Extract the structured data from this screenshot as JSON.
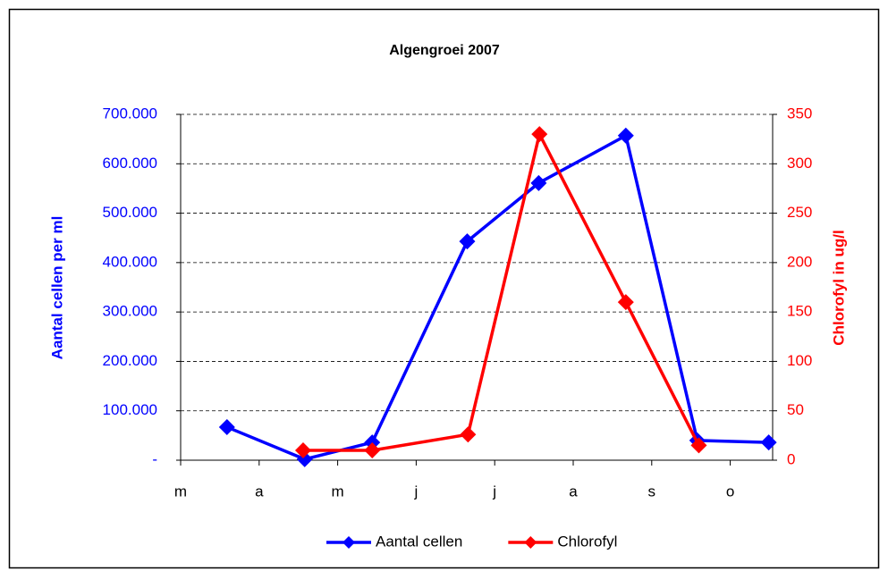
{
  "chart_data": {
    "type": "line",
    "title": "Algengroei 2007",
    "y_label": "Aantal cellen per ml",
    "y2_label": "Chlorofyl in ug/l",
    "xlim": [
      3,
      10.54
    ],
    "xticks": [
      {
        "value": 3,
        "label": "m"
      },
      {
        "value": 4,
        "label": "a"
      },
      {
        "value": 5,
        "label": "m"
      },
      {
        "value": 6,
        "label": "j"
      },
      {
        "value": 7,
        "label": "j"
      },
      {
        "value": 8,
        "label": "a"
      },
      {
        "value": 9,
        "label": "s"
      },
      {
        "value": 10,
        "label": "o"
      }
    ],
    "ylim": [
      0,
      700000
    ],
    "yticks": [
      {
        "value": 0,
        "label": "-"
      },
      {
        "value": 100000,
        "label": "100.000"
      },
      {
        "value": 200000,
        "label": "200.000"
      },
      {
        "value": 300000,
        "label": "300.000"
      },
      {
        "value": 400000,
        "label": "400.000"
      },
      {
        "value": 500000,
        "label": "500.000"
      },
      {
        "value": 600000,
        "label": "600.000"
      },
      {
        "value": 700000,
        "label": "700.000"
      }
    ],
    "y2lim": [
      0,
      350
    ],
    "y2ticks": [
      0,
      50,
      100,
      150,
      200,
      250,
      300,
      350
    ],
    "grid": true,
    "legend": "bottom",
    "series": [
      {
        "name": "Aantal cellen",
        "color": "#0000ff",
        "x": [
          3.59,
          4.58,
          5.44,
          6.65,
          7.56,
          8.67,
          9.58,
          10.49
        ],
        "values": [
          67000,
          2000,
          36000,
          443000,
          561000,
          657000,
          40000,
          36000
        ]
      },
      {
        "name": "Chlorofyl",
        "color": "#ff0000",
        "axis": "y2",
        "x": [
          4.56,
          5.44,
          6.66,
          7.57,
          8.67,
          9.6
        ],
        "values": [
          10,
          10,
          26,
          330,
          160,
          15
        ]
      }
    ]
  }
}
